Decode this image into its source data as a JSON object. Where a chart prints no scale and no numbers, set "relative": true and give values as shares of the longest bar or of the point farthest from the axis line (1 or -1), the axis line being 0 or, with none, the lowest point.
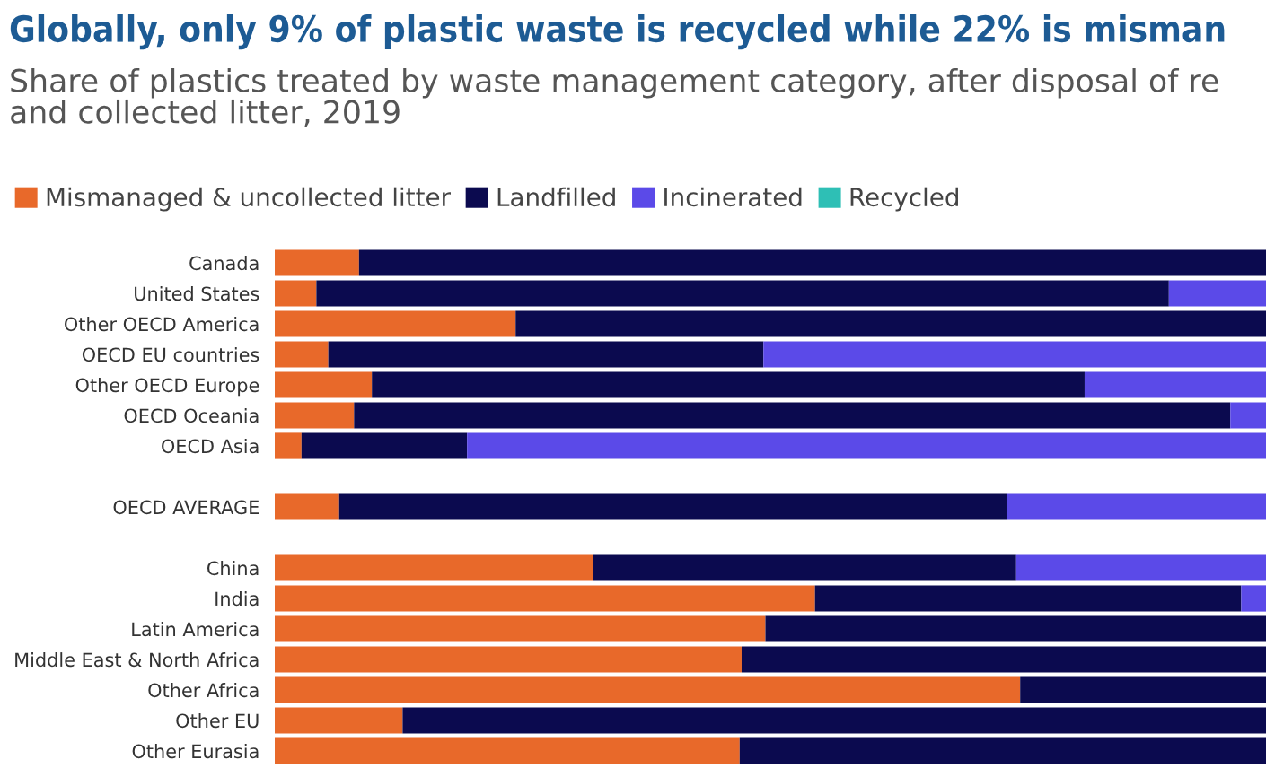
{
  "chart_data": {
    "type": "bar",
    "orientation": "horizontal",
    "stacked": true,
    "relative": true,
    "legend": "top left",
    "grid": false,
    "title": "Globally, only 9% of plastic waste is recycled while 22% is misman",
    "subtitle": "Share of plastics treated by waste management category, after disposal of re\nand collected litter, 2019",
    "categories": [
      "Canada",
      "United States",
      "Other OECD America",
      "OECD EU countries",
      "Other OECD Europe",
      "OECD Oceania",
      "OECD Asia",
      null,
      "OECD AVERAGE",
      null,
      "China",
      "India",
      "Latin America",
      "Middle East & North Africa",
      "Other Africa",
      "Other EU",
      "Other Eurasia"
    ],
    "series": [
      {
        "name": "Mismanaged & uncollected litter",
        "color": "#e8692a",
        "values": [
          0.085,
          0.042,
          0.243,
          0.054,
          0.098,
          0.08,
          0.027,
          null,
          0.065,
          null,
          0.321,
          0.545,
          0.495,
          0.471,
          0.752,
          0.129,
          0.469
        ]
      },
      {
        "name": "Landfilled",
        "color": "#0b0a4f",
        "values": [
          0.915,
          0.86,
          0.757,
          0.439,
          0.719,
          0.884,
          0.167,
          null,
          0.674,
          null,
          0.427,
          0.43,
          0.505,
          0.529,
          0.248,
          0.871,
          0.531
        ]
      },
      {
        "name": "Incinerated",
        "color": "#5b4ae8",
        "values": [
          0,
          0.098,
          0,
          0.507,
          0.183,
          0.036,
          0.806,
          null,
          0.261,
          null,
          0.252,
          0.025,
          0,
          0,
          0,
          0,
          0
        ]
      },
      {
        "name": "Recycled",
        "color": "#2ebfb5",
        "values": [
          0,
          0,
          0,
          0,
          0,
          0,
          0,
          null,
          0,
          null,
          0,
          0,
          0,
          0,
          0,
          0,
          0
        ]
      }
    ]
  }
}
